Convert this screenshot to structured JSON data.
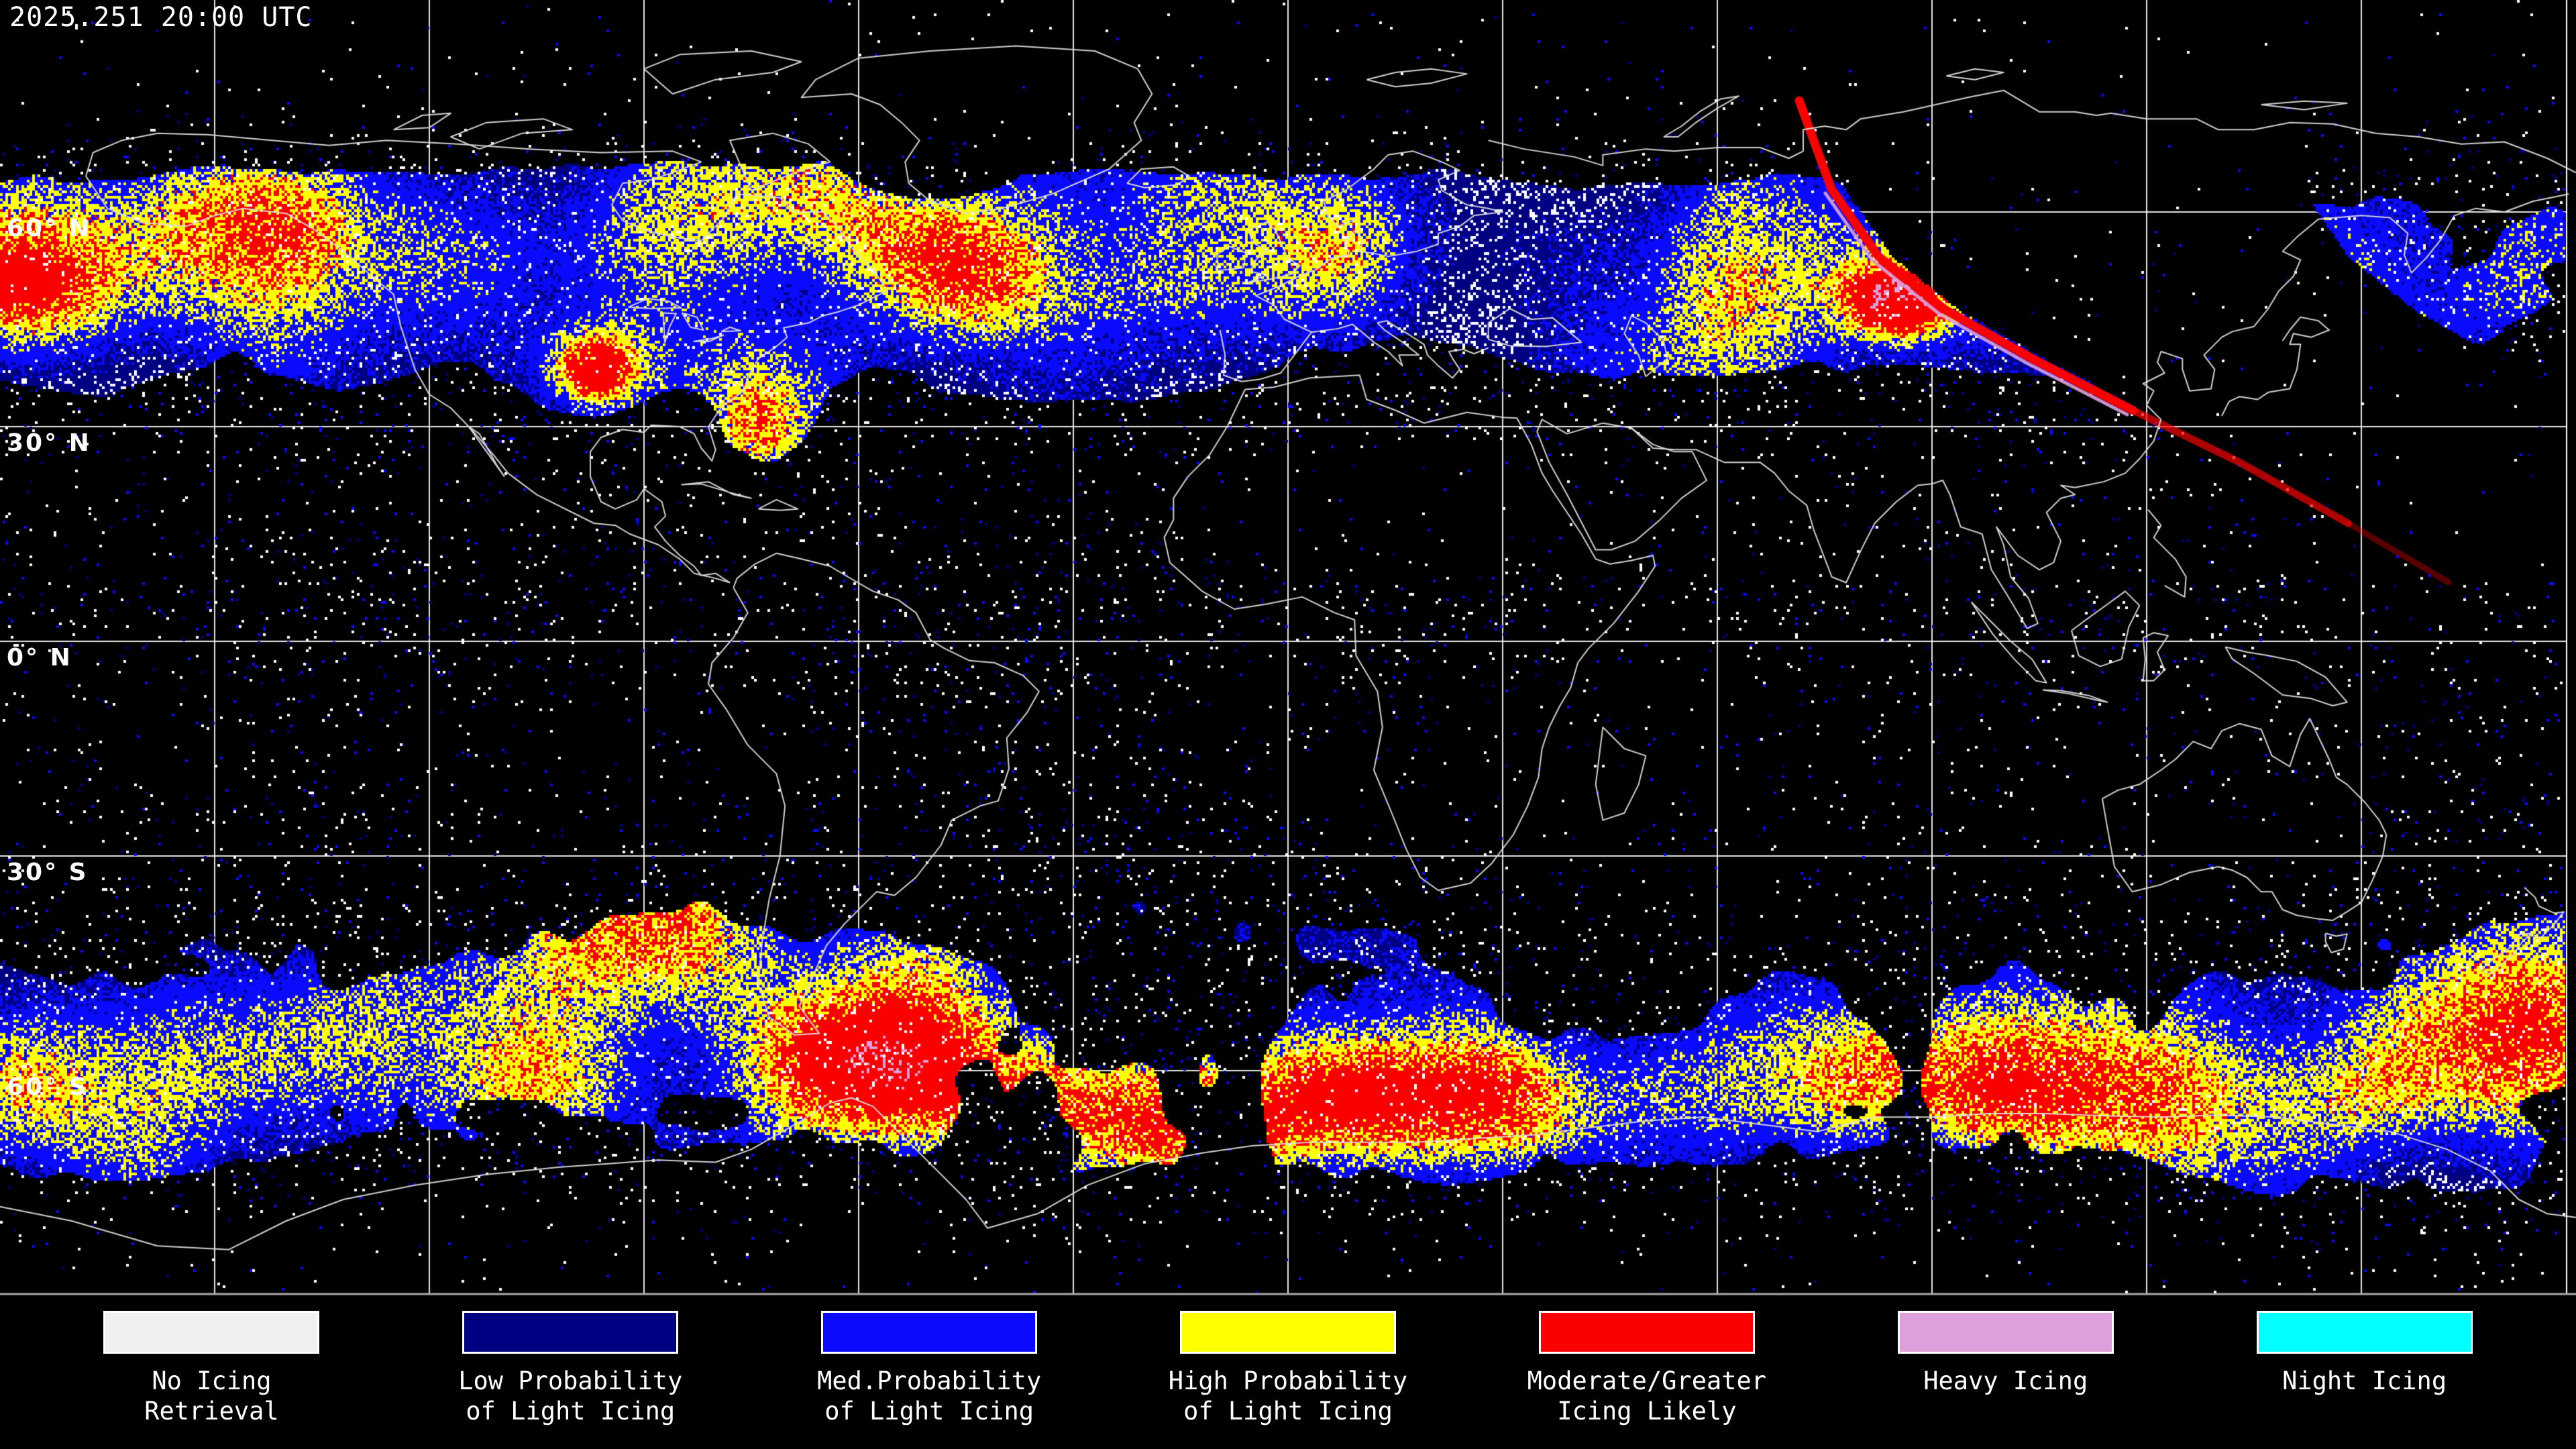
{
  "header": {
    "timestamp": "2025.251 20:00 UTC"
  },
  "map": {
    "lat_labels": [
      {
        "label": "60° N"
      },
      {
        "label": "30° N"
      },
      {
        "label": "0° N"
      },
      {
        "label": "30° S"
      },
      {
        "label": "60° S"
      }
    ],
    "grid": {
      "lat_step_deg": 30,
      "lon_step_deg": 30
    },
    "colors": {
      "background": "#000000",
      "gridline": "#FFFFFF",
      "coastline": "#DCDCDC",
      "bottom_border": "#AAAAAA",
      "right_border": "#FFFFFF",
      "terminator_red": "#FA0000",
      "terminator_plum": "#DDA0DD"
    }
  },
  "legend": {
    "items": [
      {
        "label_line1": "No Icing",
        "label_line2": "Retrieval",
        "color": "#F0F0F0"
      },
      {
        "label_line1": "Low Probability",
        "label_line2": "of Light Icing",
        "color": "#000082"
      },
      {
        "label_line1": "Med.Probability",
        "label_line2": "of Light Icing",
        "color": "#0A0AFF"
      },
      {
        "label_line1": "High Probability",
        "label_line2": "of Light Icing",
        "color": "#FFFF00"
      },
      {
        "label_line1": "Moderate/Greater",
        "label_line2": "Icing Likely",
        "color": "#FA0000"
      },
      {
        "label_line1": "Heavy Icing",
        "label_line2": "",
        "color": "#DDA0DD"
      },
      {
        "label_line1": "Night Icing",
        "label_line2": "",
        "color": "#00FFFF"
      }
    ]
  }
}
